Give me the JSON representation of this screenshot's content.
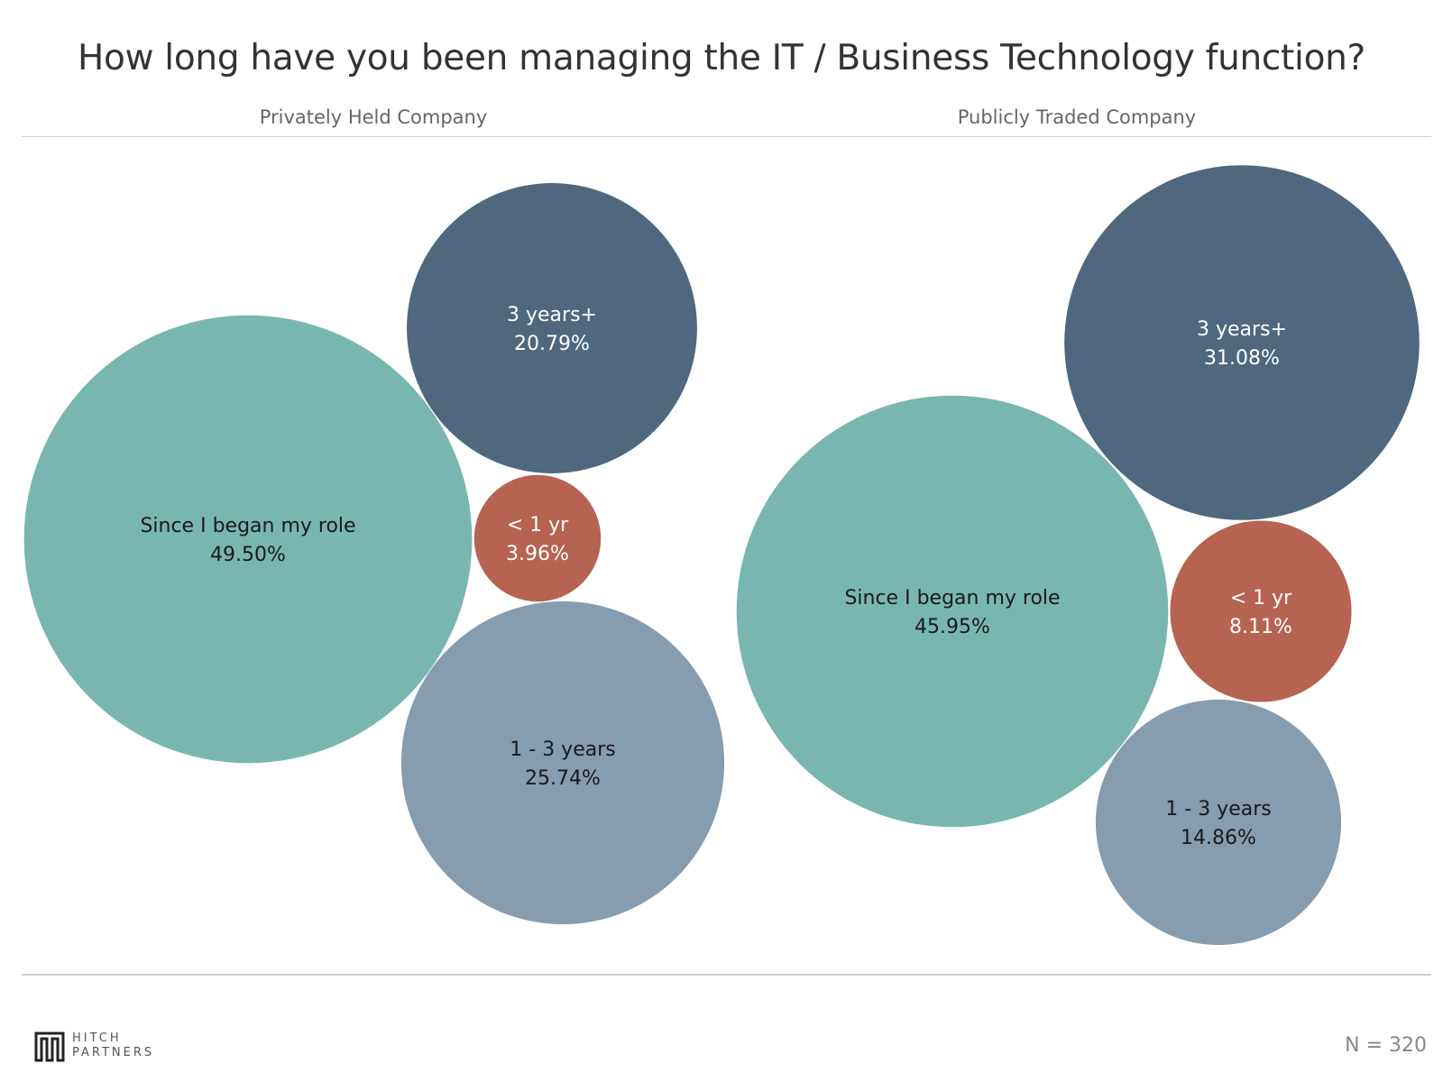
{
  "colors": {
    "since": "#79b6b0",
    "three_plus": "#4f687f",
    "lt_one": "#b76352",
    "one_three": "#869caf"
  },
  "chart_data": [
    {
      "type": "bubble",
      "title": "How long have you been managing the IT / Business Technology function?",
      "panel": "Privately Held Company",
      "slices": [
        {
          "category": "Since I began my role",
          "value": 49.5,
          "label": "49.50%",
          "color_key": "since",
          "text_color": "#1a1a1a"
        },
        {
          "category": "3 years+",
          "value": 20.79,
          "label": "20.79%",
          "color_key": "three_plus",
          "text_color": "#ffffff"
        },
        {
          "category": "< 1 yr",
          "value": 3.96,
          "label": "3.96%",
          "color_key": "lt_one",
          "text_color": "#ffffff"
        },
        {
          "category": "1 - 3 years",
          "value": 25.74,
          "label": "25.74%",
          "color_key": "one_three",
          "text_color": "#1a1a1a"
        }
      ]
    },
    {
      "type": "bubble",
      "title": "How long have you been managing the IT / Business Technology function?",
      "panel": "Publicly Traded Company",
      "slices": [
        {
          "category": "Since I began my role",
          "value": 45.95,
          "label": "45.95%",
          "color_key": "since",
          "text_color": "#1a1a1a"
        },
        {
          "category": "3 years+",
          "value": 31.08,
          "label": "31.08%",
          "color_key": "three_plus",
          "text_color": "#ffffff"
        },
        {
          "category": "< 1 yr",
          "value": 8.11,
          "label": "8.11%",
          "color_key": "lt_one",
          "text_color": "#ffffff"
        },
        {
          "category": "1 - 3 years",
          "value": 14.86,
          "label": "14.86%",
          "color_key": "one_three",
          "text_color": "#1a1a1a"
        }
      ]
    }
  ],
  "header": {
    "title": "How long have you been managing the IT / Business Technology function?",
    "left_panel": "Privately Held Company",
    "right_panel": "Publicly Traded Company"
  },
  "footer": {
    "logo_line1": "HITCH",
    "logo_line2": "PARTNERS",
    "sample_size": "N = 320"
  }
}
